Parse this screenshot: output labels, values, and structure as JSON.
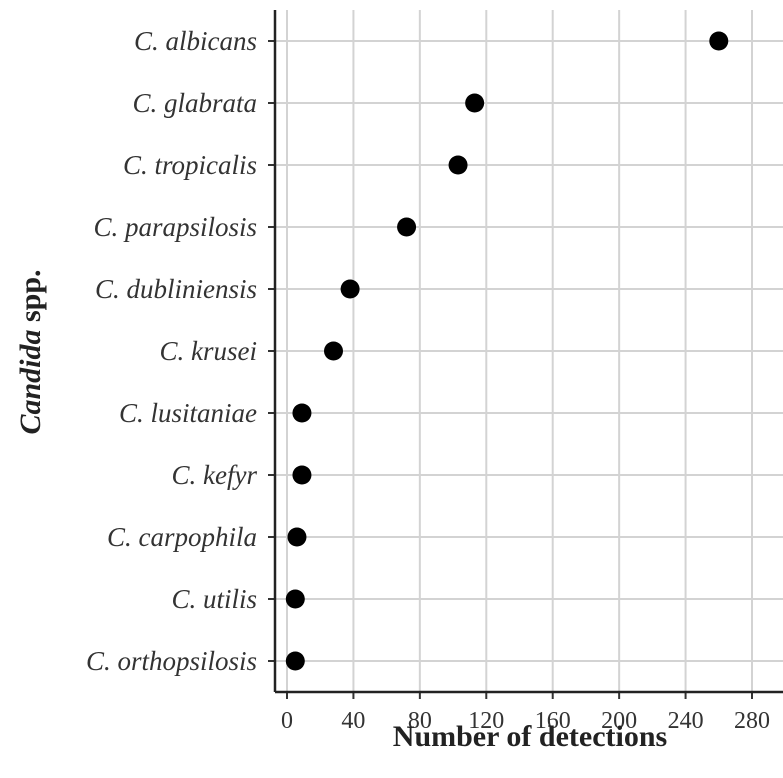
{
  "chart_data": {
    "type": "scatter",
    "categories": [
      "C. albicans",
      "C. glabrata",
      "C. tropicalis",
      "C. parapsilosis",
      "C. dubliniensis",
      "C. krusei",
      "C. lusitaniae",
      "C. kefyr",
      "C. carpophila",
      "C. utilis",
      "C. orthopsilosis"
    ],
    "values": [
      260,
      113,
      103,
      72,
      38,
      28,
      9,
      9,
      6,
      5,
      5
    ],
    "xlabel": "Number of detections",
    "ylabel_italic": "Candida",
    "ylabel_rest": " spp.",
    "xticks": [
      0,
      40,
      80,
      120,
      160,
      200,
      240,
      280
    ],
    "xlim": [
      -8,
      300
    ],
    "grid": true,
    "point_color": "#000000"
  }
}
